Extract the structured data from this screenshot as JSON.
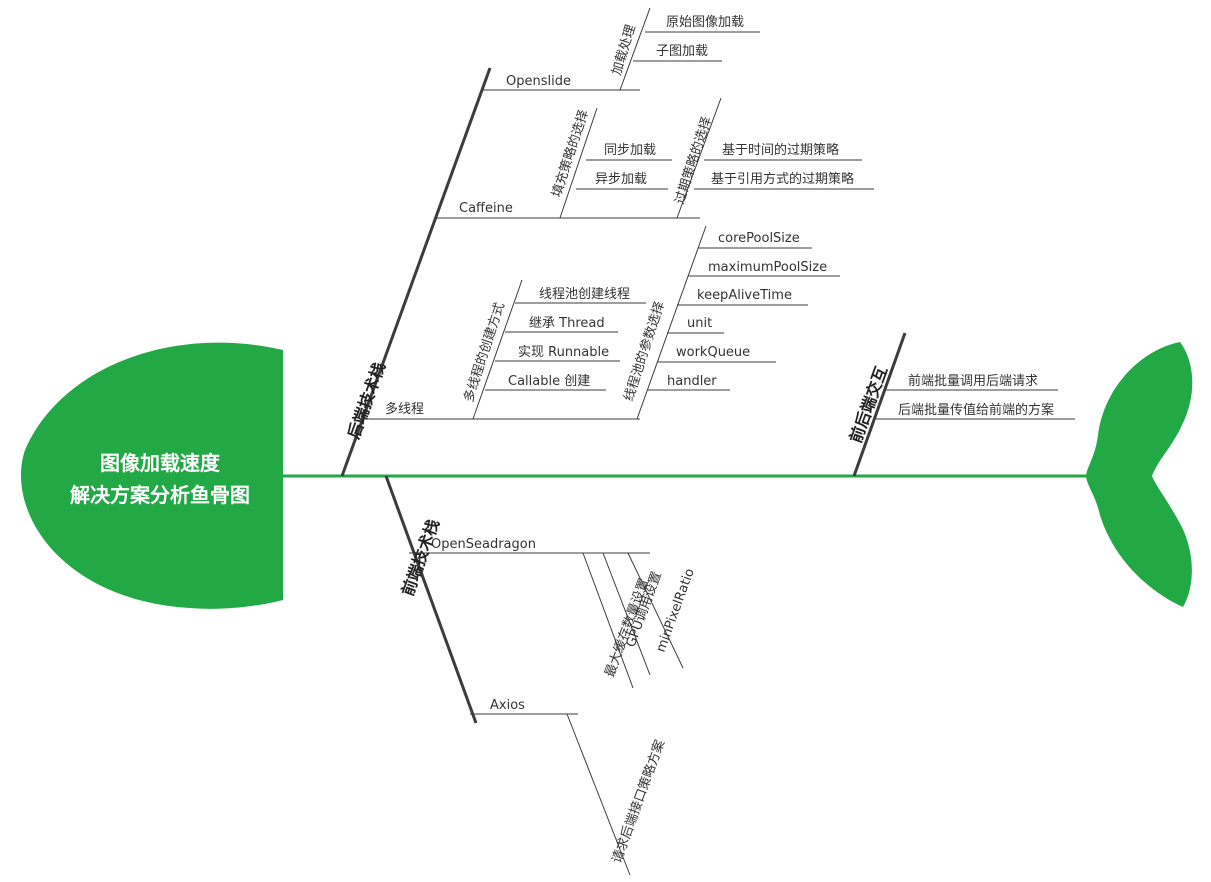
{
  "title": {
    "line1": "图像加载速度",
    "line2": "解决方案分析鱼骨图"
  },
  "colors": {
    "fish": "#22a845",
    "spine": "#22a845",
    "bone": "#3c3c3c",
    "text": "#333333"
  },
  "backend": {
    "label": "后端技术栈",
    "openslide": {
      "label": "Openslide",
      "loading": {
        "label": "加载处理",
        "items": [
          "原始图像加载",
          "子图加载"
        ]
      }
    },
    "caffeine": {
      "label": "Caffeine",
      "fill": {
        "label": "填充策略的选择",
        "items": [
          "同步加载",
          "异步加载"
        ]
      },
      "expiry": {
        "label": "过期策略的选择",
        "items": [
          "基于时间的过期策略",
          "基于引用方式的过期策略"
        ]
      }
    },
    "threading": {
      "label": "多线程",
      "create": {
        "label": "多线程的创建方式",
        "items": [
          "线程池创建线程",
          "继承 Thread",
          "实现 Runnable",
          "Callable 创建"
        ]
      },
      "params": {
        "label": "线程池的参数选择",
        "items": [
          "corePoolSize",
          "maximumPoolSize",
          "keepAliveTime",
          "unit",
          "workQueue",
          "handler"
        ]
      }
    }
  },
  "interaction": {
    "label": "前后端交互",
    "items": [
      "前端批量调用后端请求",
      "后端批量传值给前端的方案"
    ]
  },
  "frontend": {
    "label": "前端技术栈",
    "openseadragon": {
      "label": "OpenSeadragon",
      "items": [
        "最大缓存数量设置",
        "GPU调用设置",
        "minPixelRatio"
      ]
    },
    "axios": {
      "label": "Axios",
      "items": [
        "请求后端接口策略方案"
      ]
    }
  }
}
